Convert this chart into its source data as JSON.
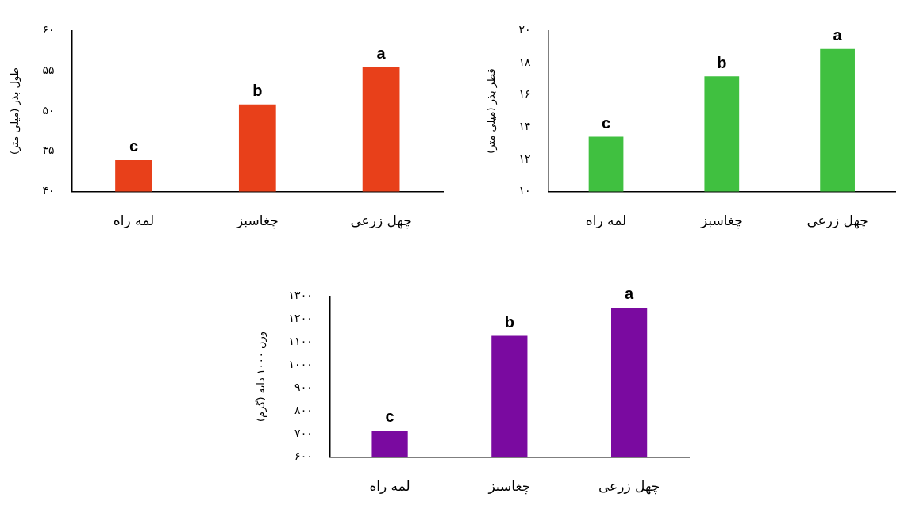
{
  "chart_data": [
    {
      "type": "bar",
      "ylabel": "طول بذر (میلی متر)",
      "categories": [
        "لمه راه",
        "چغاسبز",
        "چهل زرعی"
      ],
      "values": [
        43.9,
        50.8,
        55.5
      ],
      "color": "#e8401a",
      "ylim": [
        40,
        60
      ],
      "yticks": [
        {
          "value": 40,
          "label": "۴۰"
        },
        {
          "value": 45,
          "label": "۴۵"
        },
        {
          "value": 50,
          "label": "۵۰"
        },
        {
          "value": 55,
          "label": "۵۵"
        },
        {
          "value": 60,
          "label": "۶۰"
        }
      ],
      "grid": false,
      "annotations": [
        {
          "text": "c",
          "x": "لمه راه",
          "y": 43.9
        },
        {
          "text": "b",
          "x": "چغاسبز",
          "y": 50.8
        },
        {
          "text": "a",
          "x": "چهل زرعی",
          "y": 55.5
        }
      ]
    },
    {
      "type": "bar",
      "ylabel": "قطر بذر (میلی متر)",
      "categories": [
        "لمه راه",
        "چغاسبز",
        "چهل زرعی"
      ],
      "values": [
        13.4,
        17.15,
        18.85
      ],
      "color": "#40c040",
      "ylim": [
        10,
        20
      ],
      "yticks": [
        {
          "value": 10,
          "label": "۱۰"
        },
        {
          "value": 12,
          "label": "۱۲"
        },
        {
          "value": 14,
          "label": "۱۴"
        },
        {
          "value": 16,
          "label": "۱۶"
        },
        {
          "value": 18,
          "label": "۱۸"
        },
        {
          "value": 20,
          "label": "۲۰"
        }
      ],
      "grid": false,
      "annotations": [
        {
          "text": "c",
          "x": "لمه راه",
          "y": 13.4
        },
        {
          "text": "b",
          "x": "چغاسبز",
          "y": 17.15
        },
        {
          "text": "a",
          "x": "چهل زرعی",
          "y": 18.85
        }
      ]
    },
    {
      "type": "bar",
      "ylabel": "وزن ۱۰۰۰ دانه (گرم)",
      "categories": [
        "لمه راه",
        "چغاسبز",
        "چهل زرعی"
      ],
      "values": [
        716,
        1127,
        1250
      ],
      "color": "#7a0aa0",
      "ylim": [
        600,
        1300
      ],
      "yticks": [
        {
          "value": 600,
          "label": "۶۰۰"
        },
        {
          "value": 700,
          "label": "۷۰۰"
        },
        {
          "value": 800,
          "label": "۸۰۰"
        },
        {
          "value": 900,
          "label": "۹۰۰"
        },
        {
          "value": 1000,
          "label": "۱۰۰۰"
        },
        {
          "value": 1100,
          "label": "۱۱۰۰"
        },
        {
          "value": 1200,
          "label": "۱۲۰۰"
        },
        {
          "value": 1300,
          "label": "۱۳۰۰"
        }
      ],
      "grid": false,
      "annotations": [
        {
          "text": "c",
          "x": "لمه راه",
          "y": 716
        },
        {
          "text": "b",
          "x": "چغاسبز",
          "y": 1127
        },
        {
          "text": "a",
          "x": "چهل زرعی",
          "y": 1250
        }
      ]
    }
  ]
}
